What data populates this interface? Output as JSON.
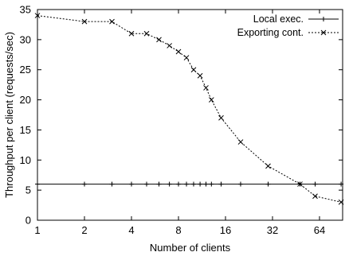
{
  "chart_data": {
    "type": "line",
    "title": "",
    "xlabel": "Number of clients",
    "ylabel": "Throughput per client (requests/sec)",
    "xscale": "log2",
    "xlim": [
      1,
      90
    ],
    "ylim": [
      0,
      35
    ],
    "xticks": [
      {
        "value": 1,
        "label": "1"
      },
      {
        "value": 2,
        "label": "2"
      },
      {
        "value": 4,
        "label": "4"
      },
      {
        "value": 8,
        "label": "8"
      },
      {
        "value": 16,
        "label": "16"
      },
      {
        "value": 32,
        "label": "32"
      },
      {
        "value": 64,
        "label": "64"
      }
    ],
    "yticks": [
      {
        "value": 0,
        "label": "0"
      },
      {
        "value": 5,
        "label": "5"
      },
      {
        "value": 10,
        "label": "10"
      },
      {
        "value": 15,
        "label": "15"
      },
      {
        "value": 20,
        "label": "20"
      },
      {
        "value": 25,
        "label": "25"
      },
      {
        "value": 30,
        "label": "30"
      },
      {
        "value": 35,
        "label": "35"
      }
    ],
    "grid": false,
    "legend_position": "top-right",
    "series": [
      {
        "name": "Local exec.",
        "line_style": "solid",
        "marker": "plus",
        "color": "#000000",
        "x": [
          1,
          2,
          3,
          4,
          5,
          6,
          7,
          8,
          9,
          10,
          11,
          12,
          13,
          15,
          20,
          30,
          48,
          60,
          88
        ],
        "y": [
          6,
          6,
          6,
          6,
          6,
          6,
          6,
          6,
          6,
          6,
          6,
          6,
          6,
          6,
          6,
          6,
          6,
          6,
          6
        ]
      },
      {
        "name": "Exporting cont.",
        "line_style": "dashed",
        "marker": "cross",
        "color": "#000000",
        "x": [
          1,
          2,
          3,
          4,
          5,
          6,
          7,
          8,
          9,
          10,
          11,
          12,
          13,
          15,
          20,
          30,
          48,
          60,
          88
        ],
        "y": [
          34,
          33,
          33,
          31,
          31,
          30,
          29,
          28,
          27,
          25,
          24,
          22,
          20,
          17,
          13,
          9,
          6,
          4,
          3
        ]
      }
    ]
  }
}
